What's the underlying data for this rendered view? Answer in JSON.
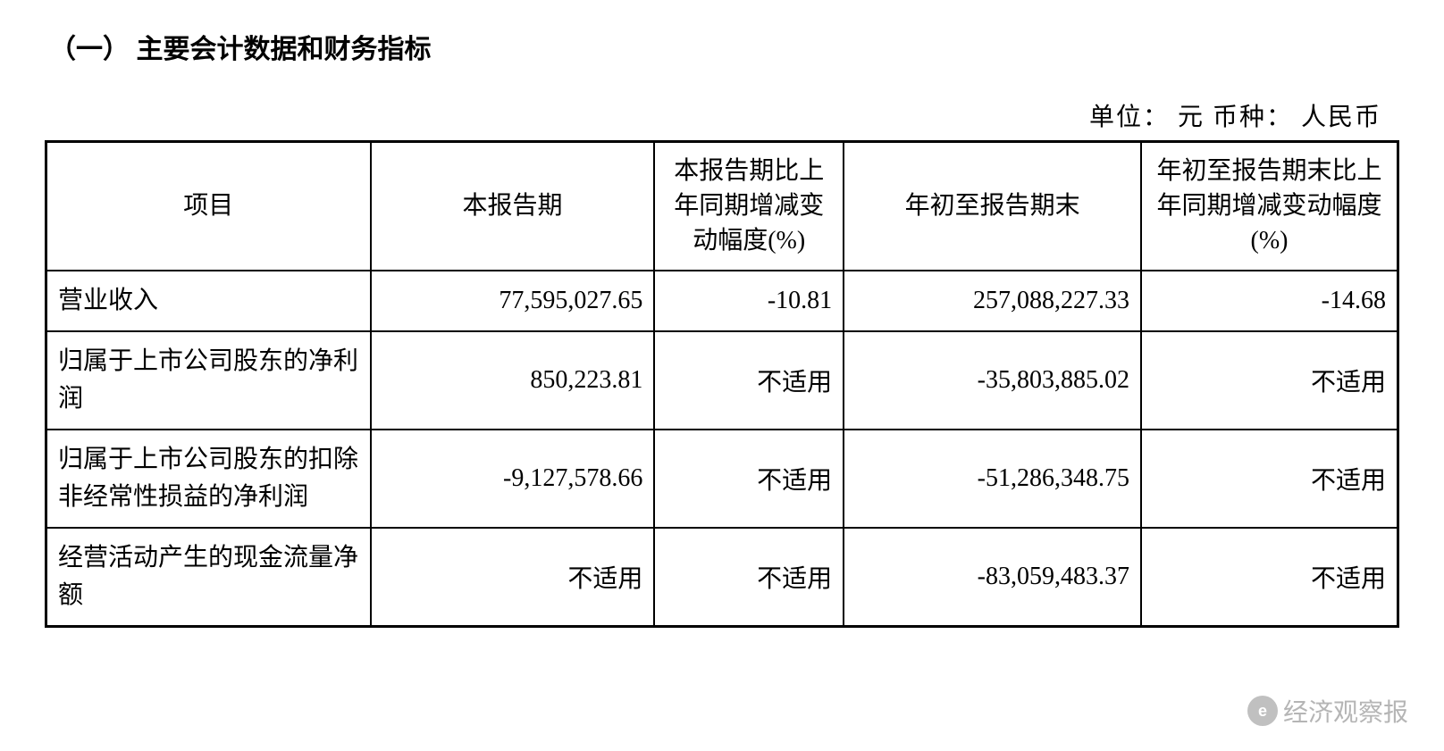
{
  "section_title": "（一）  主要会计数据和财务指标",
  "unit_line": "单位：  元    币种：  人民币",
  "table": {
    "type": "table",
    "border_color": "#000000",
    "background_color": "#ffffff",
    "text_color": "#000000",
    "font_size_pt": 21,
    "columns": [
      {
        "key": "item",
        "label": "项目",
        "width_pct": 24,
        "align": "center"
      },
      {
        "key": "current_period",
        "label": "本报告期",
        "width_pct": 21,
        "align": "center"
      },
      {
        "key": "yoy_change_pct",
        "label": "本报告期比上年同期增减变动幅度(%)",
        "width_pct": 14,
        "align": "center"
      },
      {
        "key": "ytd_end",
        "label": "年初至报告期末",
        "width_pct": 22,
        "align": "center"
      },
      {
        "key": "ytd_yoy_change_pct",
        "label": "年初至报告期末比上年同期增减变动幅度(%)",
        "width_pct": 19,
        "align": "center"
      }
    ],
    "rows": [
      {
        "item": "营业收入",
        "current_period": "77,595,027.65",
        "yoy_change_pct": "-10.81",
        "ytd_end": "257,088,227.33",
        "ytd_yoy_change_pct": "-14.68"
      },
      {
        "item": "归属于上市公司股东的净利润",
        "current_period": "850,223.81",
        "yoy_change_pct": "不适用",
        "ytd_end": "-35,803,885.02",
        "ytd_yoy_change_pct": "不适用"
      },
      {
        "item": "归属于上市公司股东的扣除非经常性损益的净利润",
        "current_period": "-9,127,578.66",
        "yoy_change_pct": "不适用",
        "ytd_end": "-51,286,348.75",
        "ytd_yoy_change_pct": "不适用"
      },
      {
        "item": "经营活动产生的现金流量净额",
        "current_period": "不适用",
        "yoy_change_pct": "不适用",
        "ytd_end": "-83,059,483.37",
        "ytd_yoy_change_pct": "不适用"
      }
    ]
  },
  "watermark": {
    "text": "经济观察报",
    "icon_glyph": "ⓔ",
    "color": "rgba(120,120,120,0.55)"
  }
}
